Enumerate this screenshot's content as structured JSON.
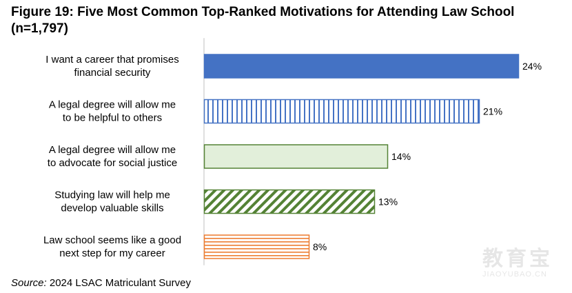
{
  "title": "Figure 19: Five Most Common Top-Ranked Motivations for Attending Law School (n=1,797)",
  "source": {
    "label": "Source:",
    "text": "2024 LSAC Matriculant Survey"
  },
  "watermark": {
    "text": "教育宝",
    "subtext": "JIAOYUBAO.CN"
  },
  "colors": {
    "blue": "#4472C4",
    "green": "#70AD47",
    "green_fill": "#E2EFDA",
    "green_dark": "#548235",
    "orange": "#ED7D31"
  },
  "chart_data": {
    "type": "bar",
    "orientation": "horizontal",
    "categories": [
      [
        "I want a career that promises",
        "financial security"
      ],
      [
        "A legal degree will allow me",
        "to be helpful to others"
      ],
      [
        "A legal degree will allow me",
        "to advocate for social justice"
      ],
      [
        "Studying law will help me",
        "develop valuable skills"
      ],
      [
        "Law school seems like a good",
        "next step for my career"
      ]
    ],
    "values": [
      24,
      21,
      14,
      13,
      8
    ],
    "value_labels": [
      "24%",
      "21%",
      "14%",
      "13%",
      "8%"
    ],
    "fills": [
      "solid-blue",
      "vertical-stripes-blue",
      "light-green",
      "diagonal-stripes-green",
      "horizontal-stripes-orange"
    ],
    "xlim": [
      0,
      24
    ],
    "grid": false,
    "legend": false
  }
}
